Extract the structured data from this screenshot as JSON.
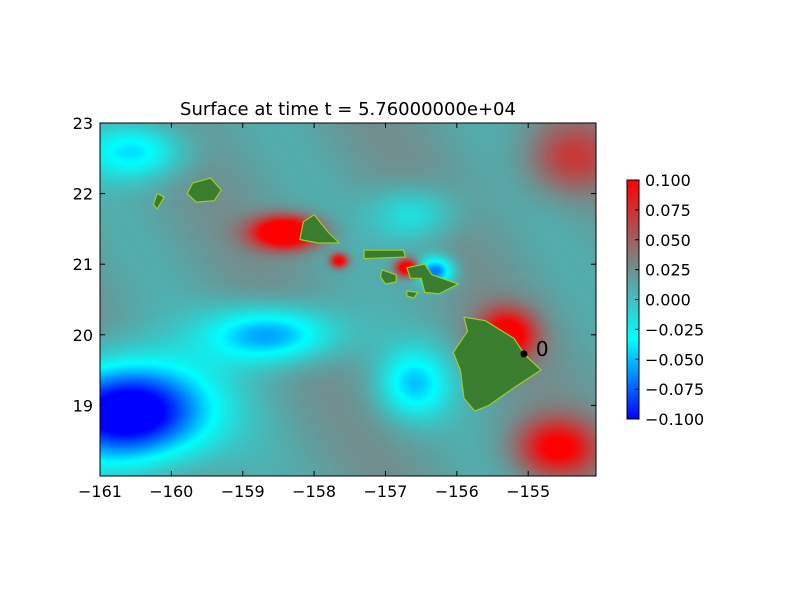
{
  "chart_data": {
    "type": "heatmap",
    "title": "Surface at time t = 5.76000000e+04",
    "xlabel": "",
    "ylabel": "",
    "xlim": [
      -161,
      -154.05
    ],
    "ylim": [
      18,
      23
    ],
    "x_ticks": [
      -161,
      -160,
      -159,
      -158,
      -157,
      -156,
      -155
    ],
    "x_tick_labels": [
      "−161",
      "−160",
      "−159",
      "−158",
      "−157",
      "−156",
      "−155"
    ],
    "y_ticks": [
      19,
      20,
      21,
      22,
      23
    ],
    "y_tick_labels": [
      "19",
      "20",
      "21",
      "22",
      "23"
    ],
    "colorbar": {
      "min": -0.1,
      "max": 0.1,
      "ticks": [
        0.1,
        0.075,
        0.05,
        0.025,
        0.0,
        -0.025,
        -0.05,
        -0.075,
        -0.1
      ],
      "tick_labels": [
        "0.100",
        "0.075",
        "0.050",
        "0.025",
        "0.000",
        "−0.025",
        "−0.050",
        "−0.075",
        "−0.100"
      ],
      "colors": [
        "#0000ff",
        "#00ffff",
        "#808080",
        "#ff0000"
      ]
    },
    "land_color": "#3a7d2e",
    "gauges": [
      {
        "label": "0",
        "x": -155.06,
        "y": 19.73
      }
    ],
    "islands": [
      {
        "name": "Hawaii",
        "points": [
          [
            -155.9,
            20.25
          ],
          [
            -155.6,
            20.2
          ],
          [
            -155.2,
            19.95
          ],
          [
            -155.05,
            19.72
          ],
          [
            -154.82,
            19.5
          ],
          [
            -155.2,
            19.25
          ],
          [
            -155.55,
            19.0
          ],
          [
            -155.75,
            18.92
          ],
          [
            -155.9,
            19.1
          ],
          [
            -155.95,
            19.5
          ],
          [
            -156.05,
            19.75
          ],
          [
            -155.85,
            20.05
          ]
        ]
      },
      {
        "name": "Maui",
        "points": [
          [
            -156.7,
            20.95
          ],
          [
            -156.45,
            21.0
          ],
          [
            -156.35,
            20.85
          ],
          [
            -155.98,
            20.72
          ],
          [
            -156.25,
            20.58
          ],
          [
            -156.45,
            20.6
          ],
          [
            -156.5,
            20.8
          ],
          [
            -156.65,
            20.8
          ]
        ]
      },
      {
        "name": "Molokai",
        "points": [
          [
            -157.3,
            21.2
          ],
          [
            -156.75,
            21.2
          ],
          [
            -156.72,
            21.1
          ],
          [
            -157.3,
            21.08
          ]
        ]
      },
      {
        "name": "Lanai",
        "points": [
          [
            -157.05,
            20.92
          ],
          [
            -156.85,
            20.85
          ],
          [
            -156.85,
            20.75
          ],
          [
            -157.0,
            20.72
          ],
          [
            -157.07,
            20.82
          ]
        ]
      },
      {
        "name": "Kahoolawe",
        "points": [
          [
            -156.7,
            20.62
          ],
          [
            -156.55,
            20.6
          ],
          [
            -156.6,
            20.52
          ],
          [
            -156.7,
            20.55
          ]
        ]
      },
      {
        "name": "Oahu",
        "points": [
          [
            -158.15,
            21.6
          ],
          [
            -158.0,
            21.7
          ],
          [
            -157.8,
            21.45
          ],
          [
            -157.65,
            21.3
          ],
          [
            -157.95,
            21.3
          ],
          [
            -158.2,
            21.35
          ]
        ]
      },
      {
        "name": "Kauai",
        "points": [
          [
            -159.7,
            22.15
          ],
          [
            -159.45,
            22.22
          ],
          [
            -159.3,
            22.05
          ],
          [
            -159.4,
            21.9
          ],
          [
            -159.65,
            21.88
          ],
          [
            -159.78,
            22.0
          ]
        ]
      },
      {
        "name": "Niihau",
        "points": [
          [
            -160.2,
            22.0
          ],
          [
            -160.1,
            21.95
          ],
          [
            -160.2,
            21.78
          ],
          [
            -160.25,
            21.85
          ]
        ]
      }
    ],
    "field_sources": [
      {
        "x": -158.4,
        "y": 21.45,
        "amp": 0.14,
        "sx": 0.45,
        "sy": 0.22
      },
      {
        "x": -157.65,
        "y": 21.05,
        "amp": 0.1,
        "sx": 0.12,
        "sy": 0.1
      },
      {
        "x": -156.7,
        "y": 20.95,
        "amp": 0.12,
        "sx": 0.15,
        "sy": 0.12
      },
      {
        "x": -155.3,
        "y": 20.0,
        "amp": 0.1,
        "sx": 0.4,
        "sy": 0.35
      },
      {
        "x": -154.6,
        "y": 18.4,
        "amp": 0.085,
        "sx": 0.55,
        "sy": 0.4
      },
      {
        "x": -154.4,
        "y": 22.5,
        "amp": 0.05,
        "sx": 0.6,
        "sy": 0.5
      },
      {
        "x": -160.6,
        "y": 18.9,
        "amp": -0.15,
        "sx": 1.1,
        "sy": 0.7
      },
      {
        "x": -158.6,
        "y": 20.0,
        "amp": -0.08,
        "sx": 0.9,
        "sy": 0.4
      },
      {
        "x": -160.5,
        "y": 22.6,
        "amp": -0.06,
        "sx": 0.7,
        "sy": 0.4
      },
      {
        "x": -156.3,
        "y": 20.9,
        "amp": -0.09,
        "sx": 0.25,
        "sy": 0.2
      },
      {
        "x": -156.6,
        "y": 19.3,
        "amp": -0.06,
        "sx": 0.5,
        "sy": 0.5
      },
      {
        "x": -156.6,
        "y": 21.7,
        "amp": -0.04,
        "sx": 0.6,
        "sy": 0.4
      }
    ]
  }
}
